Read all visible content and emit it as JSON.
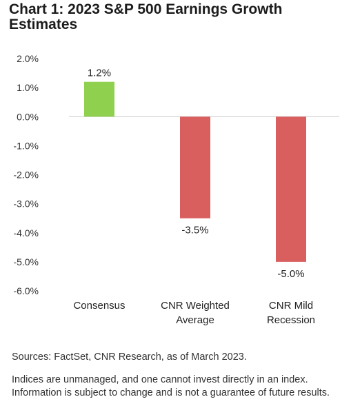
{
  "chart_data": {
    "type": "bar",
    "title": "Chart 1: 2023 S&P 500 Earnings Growth Estimates",
    "categories": [
      "Consensus",
      "CNR Weighted Average",
      "CNR Mild Recession"
    ],
    "category_lines": [
      [
        "Consensus"
      ],
      [
        "CNR Weighted",
        "Average"
      ],
      [
        "CNR Mild",
        "Recession"
      ]
    ],
    "values": [
      1.2,
      -3.5,
      -5.0
    ],
    "data_labels": [
      "1.2%",
      "-3.5%",
      "-5.0%"
    ],
    "bar_colors": [
      "#8fd14f",
      "#d95f5f",
      "#d95f5f"
    ],
    "ylim": [
      -6.0,
      2.0
    ],
    "yticks": [
      2.0,
      1.0,
      0.0,
      -1.0,
      -2.0,
      -3.0,
      -4.0,
      -5.0,
      -6.0
    ],
    "ytick_labels": [
      "2.0%",
      "1.0%",
      "0.0%",
      "-1.0%",
      "-2.0%",
      "-3.0%",
      "-4.0%",
      "-5.0%",
      "-6.0%"
    ],
    "xlabel": "",
    "ylabel": "",
    "grid": false,
    "zero_line_color": "#c8c8c8"
  },
  "footer": {
    "sources": "Sources: FactSet, CNR Research, as of March 2023.",
    "disclaimer": "Indices  are unmanaged, and one cannot invest directly in an index.  Information is subject to change and is not a guarantee of future results."
  }
}
